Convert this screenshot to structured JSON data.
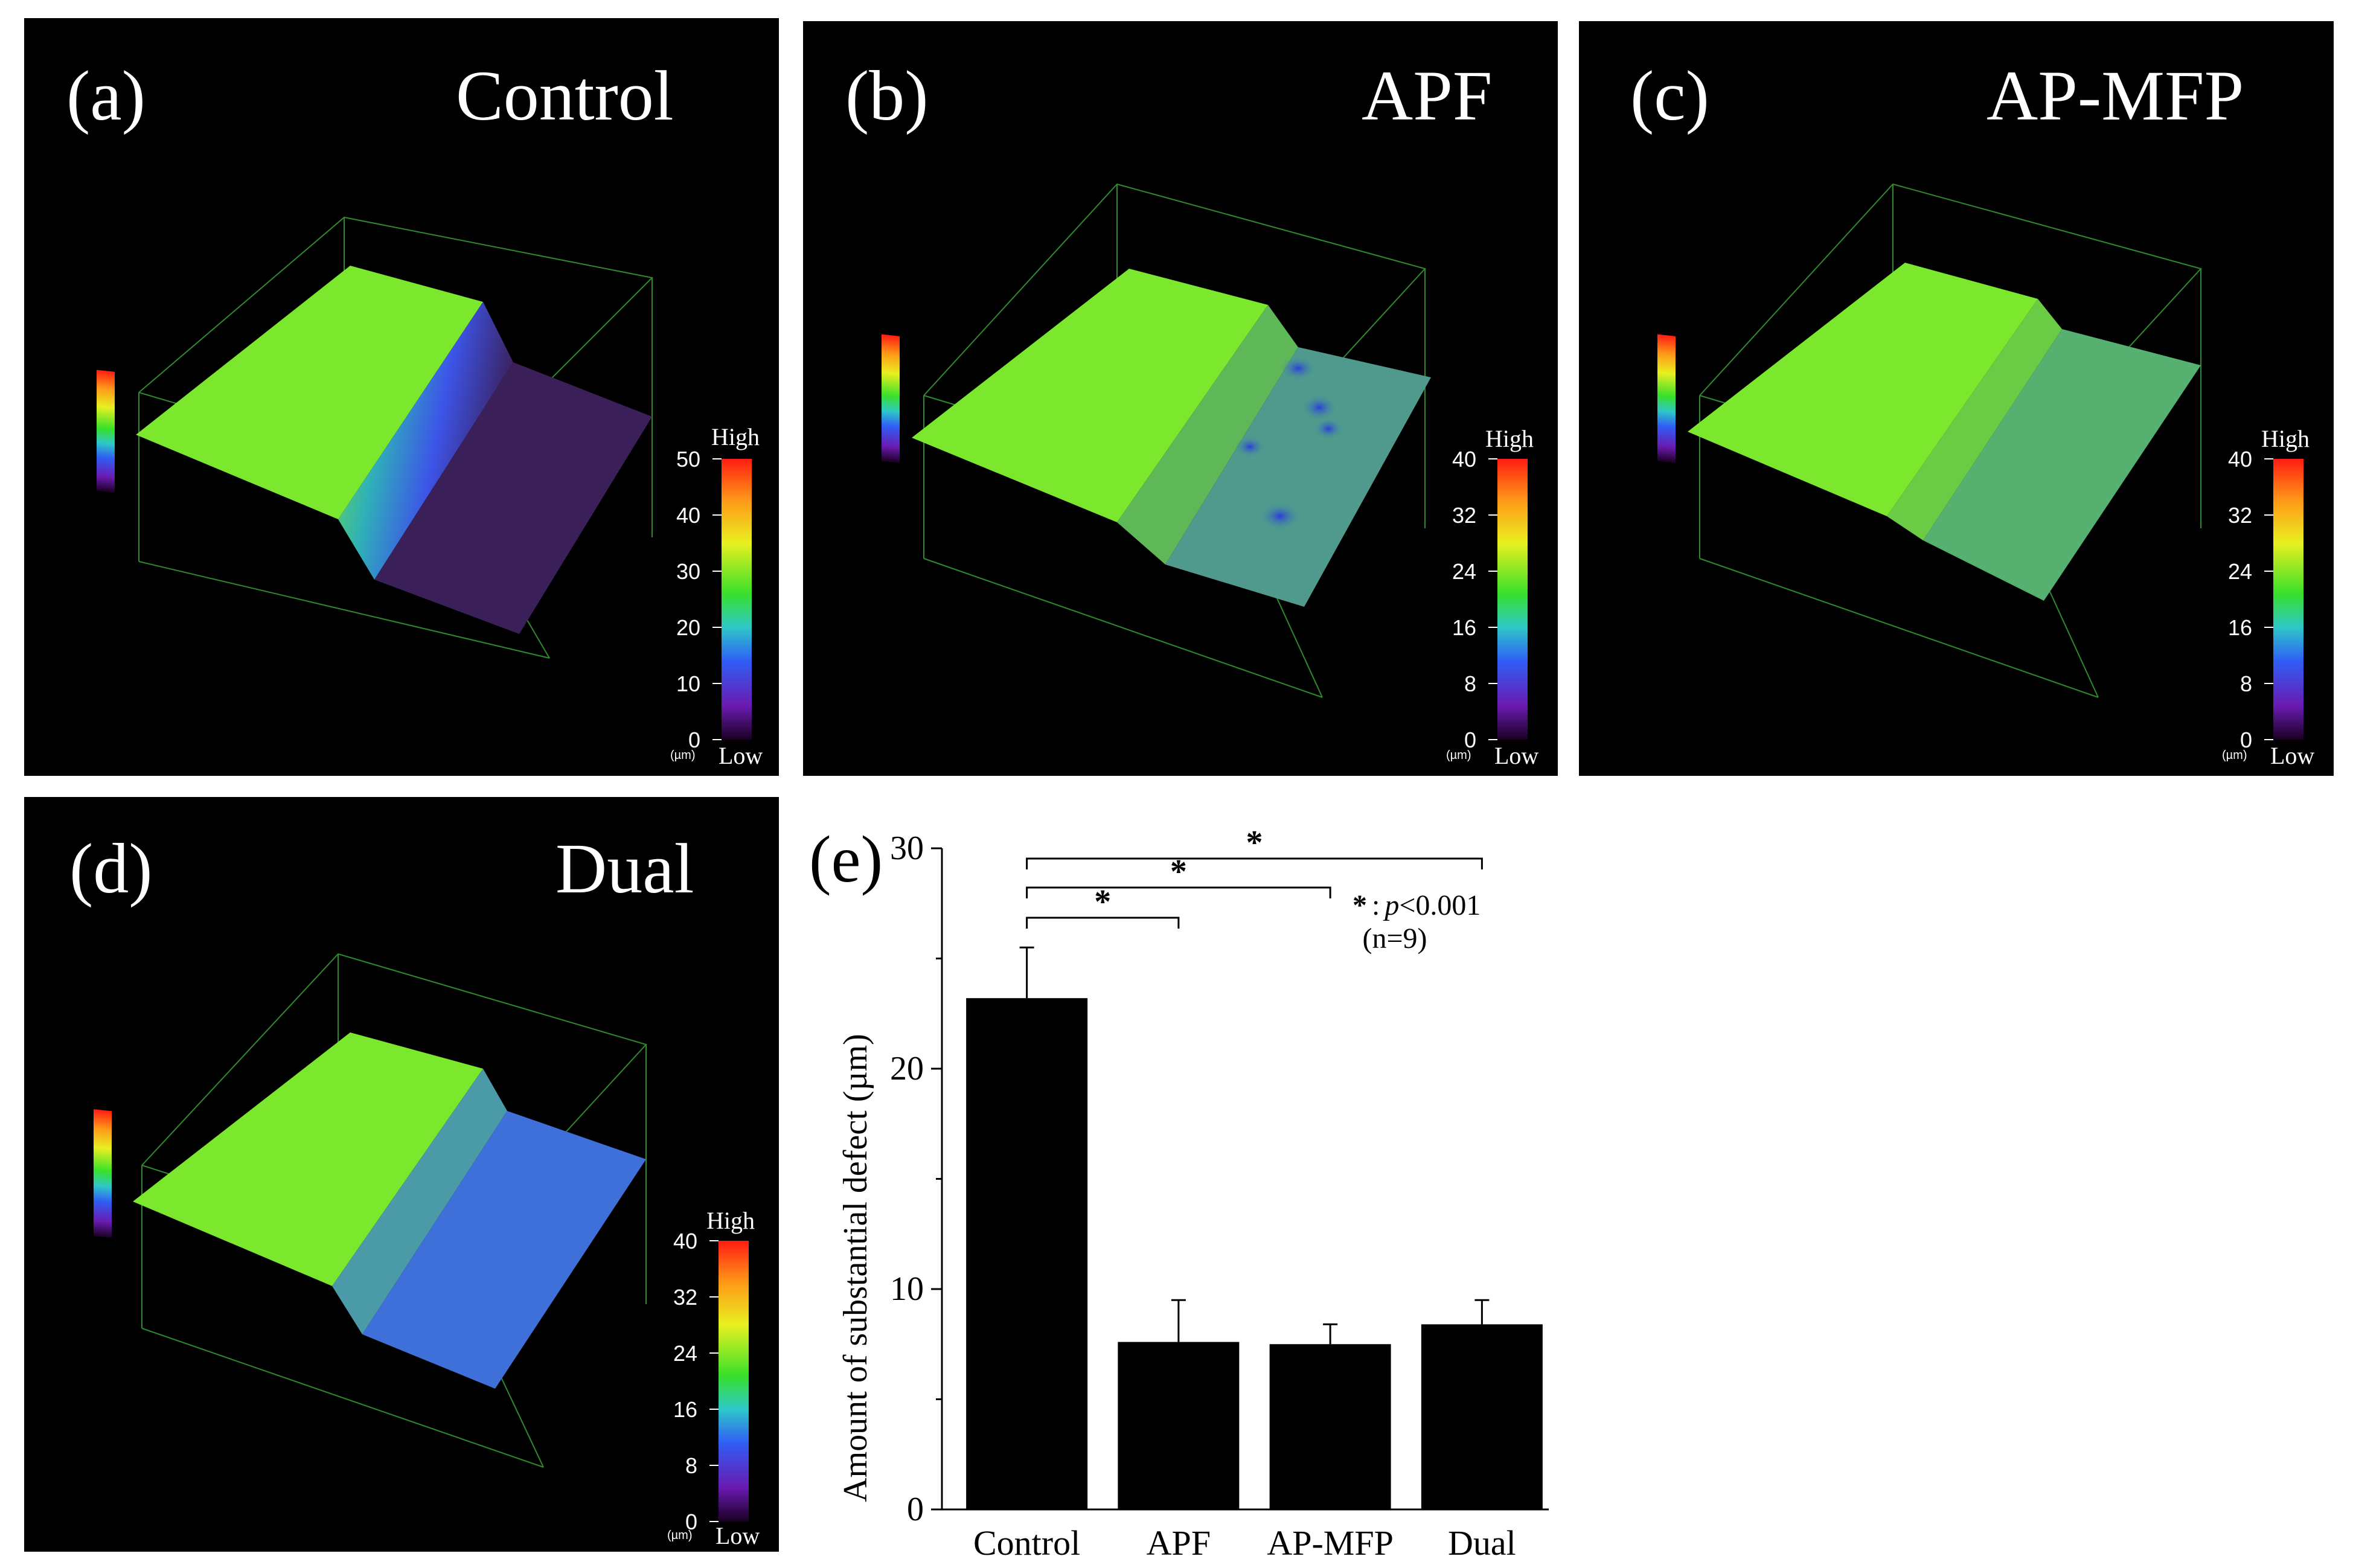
{
  "panels": [
    {
      "label": "(a)",
      "title": "Control",
      "legend_high": "High",
      "legend_low": "Low",
      "unit": "(µm)",
      "ticks": [
        "50",
        "40",
        "30",
        "20",
        "10",
        "0"
      ],
      "max": 50,
      "surface": "purple"
    },
    {
      "label": "(b)",
      "title": "APF",
      "legend_high": "High",
      "legend_low": "Low",
      "unit": "(µm)",
      "ticks": [
        "40",
        "32",
        "24",
        "16",
        "8",
        "0"
      ],
      "max": 40,
      "surface": "bluegreen-pitted"
    },
    {
      "label": "(c)",
      "title": "AP-MFP",
      "legend_high": "High",
      "legend_low": "Low",
      "unit": "(µm)",
      "ticks": [
        "40",
        "32",
        "24",
        "16",
        "8",
        "0"
      ],
      "max": 40,
      "surface": "green"
    },
    {
      "label": "(d)",
      "title": "Dual",
      "legend_high": "High",
      "legend_low": "Low",
      "unit": "(µm)",
      "ticks": [
        "40",
        "32",
        "24",
        "16",
        "8",
        "0"
      ],
      "max": 40,
      "surface": "blue"
    }
  ],
  "colors": {
    "high": "#ff2a1a",
    "green": "#7be82d",
    "blue": "#3d6fe0",
    "purple": "#3a1f58",
    "axis": "#2f8a2f"
  },
  "chart_data": {
    "type": "bar",
    "panel_label": "(e)",
    "categories": [
      "Control",
      "APF",
      "AP-MFP",
      "Dual"
    ],
    "values": [
      23.2,
      7.6,
      7.5,
      8.4
    ],
    "errors": [
      2.3,
      1.9,
      0.9,
      1.1
    ],
    "ylabel": "Amount of substantial defect (µm)",
    "xlabel": "",
    "ylim": [
      0,
      30
    ],
    "yticks": [
      0,
      10,
      20,
      30
    ],
    "significance": [
      {
        "from": "Control",
        "to": "APF",
        "label": "*"
      },
      {
        "from": "Control",
        "to": "AP-MFP",
        "label": "*"
      },
      {
        "from": "Control",
        "to": "Dual",
        "label": "*"
      }
    ],
    "note_star": "*",
    "note_colon": ":",
    "note_p": "p",
    "note_pval": "<0.001",
    "note_n": "(n=9)"
  }
}
